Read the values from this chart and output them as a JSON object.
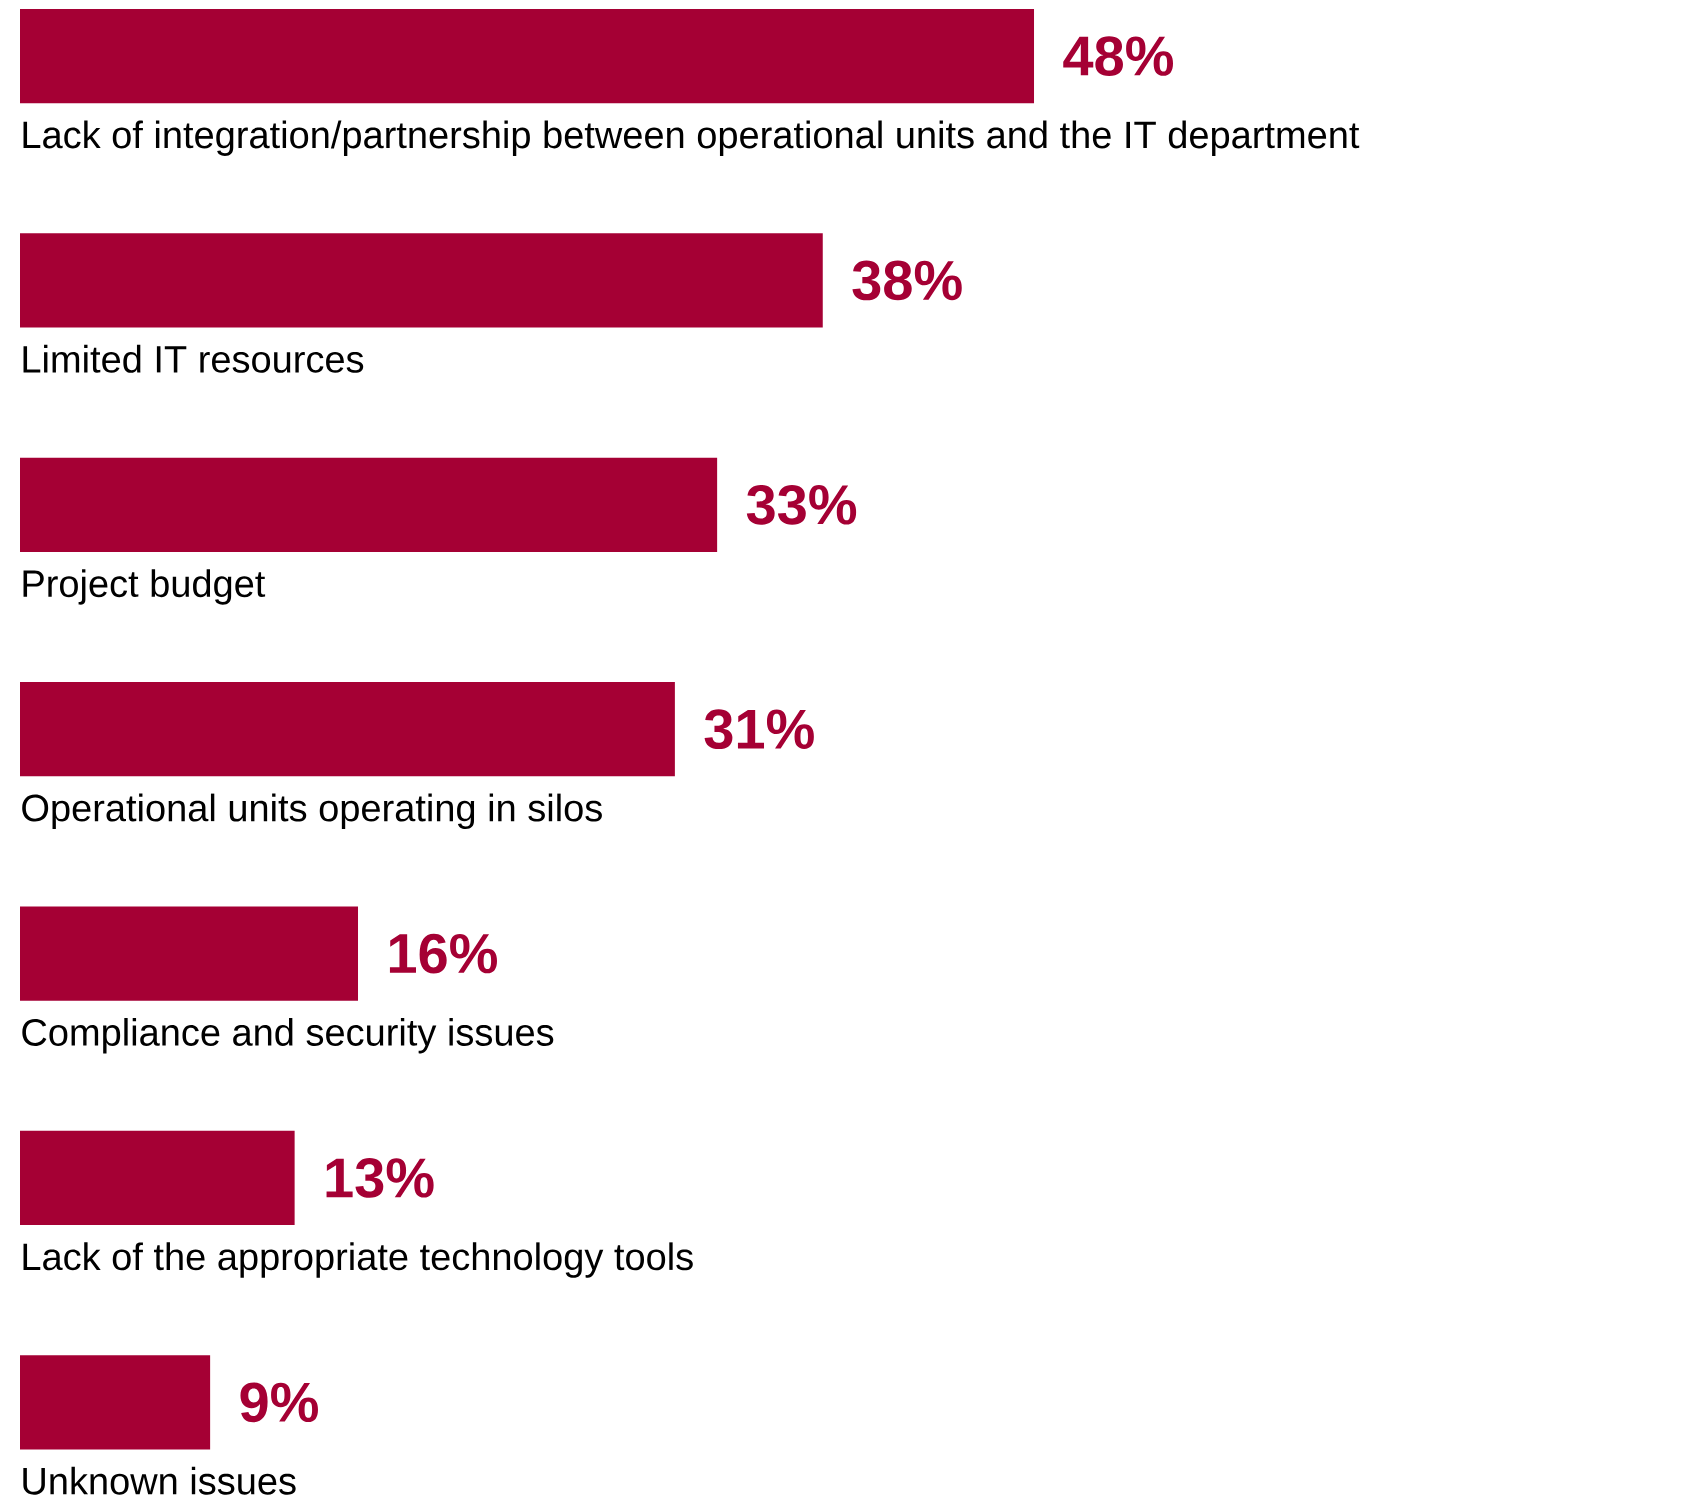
{
  "chart_data": {
    "type": "bar",
    "orientation": "horizontal",
    "color": "#a50034",
    "categories": [
      "Lack of integration/partnership between operational units and the IT department",
      "Limited IT resources",
      "Project budget",
      "Operational units operating in silos",
      "Compliance and security issues",
      "Lack of the appropriate technology tools",
      "Unknown issues"
    ],
    "values": [
      48,
      38,
      33,
      31,
      16,
      13,
      9
    ],
    "value_labels": [
      "48%",
      "38%",
      "33%",
      "31%",
      "16%",
      "13%",
      "9%"
    ]
  }
}
